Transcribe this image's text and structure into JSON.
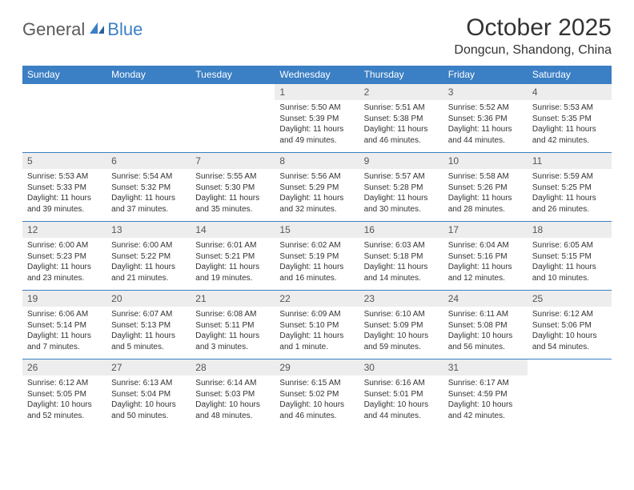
{
  "logo": {
    "part1": "General",
    "part2": "Blue"
  },
  "title": "October 2025",
  "location": "Dongcun, Shandong, China",
  "colors": {
    "header_bg": "#3b7fc4",
    "header_text": "#ffffff",
    "daynum_bg": "#ededed",
    "border": "#3b7fc4",
    "body_text": "#333333"
  },
  "dayNames": [
    "Sunday",
    "Monday",
    "Tuesday",
    "Wednesday",
    "Thursday",
    "Friday",
    "Saturday"
  ],
  "weeks": [
    [
      {
        "n": "",
        "sr": "",
        "ss": "",
        "dl": "",
        "empty": true
      },
      {
        "n": "",
        "sr": "",
        "ss": "",
        "dl": "",
        "empty": true
      },
      {
        "n": "",
        "sr": "",
        "ss": "",
        "dl": "",
        "empty": true
      },
      {
        "n": "1",
        "sr": "Sunrise: 5:50 AM",
        "ss": "Sunset: 5:39 PM",
        "dl": "Daylight: 11 hours and 49 minutes."
      },
      {
        "n": "2",
        "sr": "Sunrise: 5:51 AM",
        "ss": "Sunset: 5:38 PM",
        "dl": "Daylight: 11 hours and 46 minutes."
      },
      {
        "n": "3",
        "sr": "Sunrise: 5:52 AM",
        "ss": "Sunset: 5:36 PM",
        "dl": "Daylight: 11 hours and 44 minutes."
      },
      {
        "n": "4",
        "sr": "Sunrise: 5:53 AM",
        "ss": "Sunset: 5:35 PM",
        "dl": "Daylight: 11 hours and 42 minutes."
      }
    ],
    [
      {
        "n": "5",
        "sr": "Sunrise: 5:53 AM",
        "ss": "Sunset: 5:33 PM",
        "dl": "Daylight: 11 hours and 39 minutes."
      },
      {
        "n": "6",
        "sr": "Sunrise: 5:54 AM",
        "ss": "Sunset: 5:32 PM",
        "dl": "Daylight: 11 hours and 37 minutes."
      },
      {
        "n": "7",
        "sr": "Sunrise: 5:55 AM",
        "ss": "Sunset: 5:30 PM",
        "dl": "Daylight: 11 hours and 35 minutes."
      },
      {
        "n": "8",
        "sr": "Sunrise: 5:56 AM",
        "ss": "Sunset: 5:29 PM",
        "dl": "Daylight: 11 hours and 32 minutes."
      },
      {
        "n": "9",
        "sr": "Sunrise: 5:57 AM",
        "ss": "Sunset: 5:28 PM",
        "dl": "Daylight: 11 hours and 30 minutes."
      },
      {
        "n": "10",
        "sr": "Sunrise: 5:58 AM",
        "ss": "Sunset: 5:26 PM",
        "dl": "Daylight: 11 hours and 28 minutes."
      },
      {
        "n": "11",
        "sr": "Sunrise: 5:59 AM",
        "ss": "Sunset: 5:25 PM",
        "dl": "Daylight: 11 hours and 26 minutes."
      }
    ],
    [
      {
        "n": "12",
        "sr": "Sunrise: 6:00 AM",
        "ss": "Sunset: 5:23 PM",
        "dl": "Daylight: 11 hours and 23 minutes."
      },
      {
        "n": "13",
        "sr": "Sunrise: 6:00 AM",
        "ss": "Sunset: 5:22 PM",
        "dl": "Daylight: 11 hours and 21 minutes."
      },
      {
        "n": "14",
        "sr": "Sunrise: 6:01 AM",
        "ss": "Sunset: 5:21 PM",
        "dl": "Daylight: 11 hours and 19 minutes."
      },
      {
        "n": "15",
        "sr": "Sunrise: 6:02 AM",
        "ss": "Sunset: 5:19 PM",
        "dl": "Daylight: 11 hours and 16 minutes."
      },
      {
        "n": "16",
        "sr": "Sunrise: 6:03 AM",
        "ss": "Sunset: 5:18 PM",
        "dl": "Daylight: 11 hours and 14 minutes."
      },
      {
        "n": "17",
        "sr": "Sunrise: 6:04 AM",
        "ss": "Sunset: 5:16 PM",
        "dl": "Daylight: 11 hours and 12 minutes."
      },
      {
        "n": "18",
        "sr": "Sunrise: 6:05 AM",
        "ss": "Sunset: 5:15 PM",
        "dl": "Daylight: 11 hours and 10 minutes."
      }
    ],
    [
      {
        "n": "19",
        "sr": "Sunrise: 6:06 AM",
        "ss": "Sunset: 5:14 PM",
        "dl": "Daylight: 11 hours and 7 minutes."
      },
      {
        "n": "20",
        "sr": "Sunrise: 6:07 AM",
        "ss": "Sunset: 5:13 PM",
        "dl": "Daylight: 11 hours and 5 minutes."
      },
      {
        "n": "21",
        "sr": "Sunrise: 6:08 AM",
        "ss": "Sunset: 5:11 PM",
        "dl": "Daylight: 11 hours and 3 minutes."
      },
      {
        "n": "22",
        "sr": "Sunrise: 6:09 AM",
        "ss": "Sunset: 5:10 PM",
        "dl": "Daylight: 11 hours and 1 minute."
      },
      {
        "n": "23",
        "sr": "Sunrise: 6:10 AM",
        "ss": "Sunset: 5:09 PM",
        "dl": "Daylight: 10 hours and 59 minutes."
      },
      {
        "n": "24",
        "sr": "Sunrise: 6:11 AM",
        "ss": "Sunset: 5:08 PM",
        "dl": "Daylight: 10 hours and 56 minutes."
      },
      {
        "n": "25",
        "sr": "Sunrise: 6:12 AM",
        "ss": "Sunset: 5:06 PM",
        "dl": "Daylight: 10 hours and 54 minutes."
      }
    ],
    [
      {
        "n": "26",
        "sr": "Sunrise: 6:12 AM",
        "ss": "Sunset: 5:05 PM",
        "dl": "Daylight: 10 hours and 52 minutes."
      },
      {
        "n": "27",
        "sr": "Sunrise: 6:13 AM",
        "ss": "Sunset: 5:04 PM",
        "dl": "Daylight: 10 hours and 50 minutes."
      },
      {
        "n": "28",
        "sr": "Sunrise: 6:14 AM",
        "ss": "Sunset: 5:03 PM",
        "dl": "Daylight: 10 hours and 48 minutes."
      },
      {
        "n": "29",
        "sr": "Sunrise: 6:15 AM",
        "ss": "Sunset: 5:02 PM",
        "dl": "Daylight: 10 hours and 46 minutes."
      },
      {
        "n": "30",
        "sr": "Sunrise: 6:16 AM",
        "ss": "Sunset: 5:01 PM",
        "dl": "Daylight: 10 hours and 44 minutes."
      },
      {
        "n": "31",
        "sr": "Sunrise: 6:17 AM",
        "ss": "Sunset: 4:59 PM",
        "dl": "Daylight: 10 hours and 42 minutes."
      },
      {
        "n": "",
        "sr": "",
        "ss": "",
        "dl": "",
        "empty": true
      }
    ]
  ]
}
